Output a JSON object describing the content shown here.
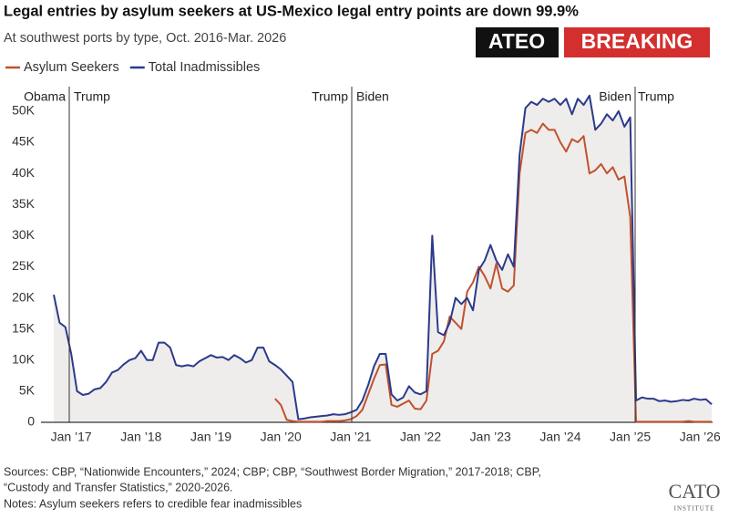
{
  "chart_data": {
    "type": "line",
    "title": "Legal entries by asylum seekers at US-Mexico legal entry points are down 99.9%",
    "subtitle": "At southwest ports by type, Oct. 2016-Mar. 2026",
    "badges": [
      "ATEO",
      "BREAKING"
    ],
    "annotations": [
      "Obama",
      "Trump",
      "Trump",
      "Biden",
      "Biden",
      "Trump"
    ],
    "sources": [
      "Sources: CBP, “Nationwide Encounters,” 2024; CBP; CBP, “Southwest Border Migration,” 2017-2018; CBP,",
      "“Custody and Transfer Statistics,” 2020-2026."
    ],
    "notes": "Notes: Asylum seekers refers to credible fear inadmissibles",
    "logo": [
      "CATO",
      "INSTITUTE"
    ],
    "categories": [
      null,
      null,
      null,
      "Jan ’17",
      null,
      null,
      null,
      null,
      null,
      null,
      null,
      null,
      null,
      null,
      null,
      "Jan ’18",
      null,
      null,
      null,
      null,
      null,
      null,
      null,
      null,
      null,
      null,
      null,
      "Jan ’19",
      null,
      null,
      null,
      null,
      null,
      null,
      null,
      null,
      null,
      null,
      null,
      "Jan ’20",
      null,
      null,
      null,
      null,
      null,
      null,
      null,
      null,
      null,
      null,
      null,
      "Jan ’21",
      null,
      null,
      null,
      null,
      null,
      null,
      null,
      null,
      null,
      null,
      null,
      "Jan ’22",
      null,
      null,
      null,
      null,
      null,
      null,
      null,
      null,
      null,
      null,
      null,
      "Jan ’23",
      null,
      null,
      null,
      null,
      null,
      null,
      null,
      null,
      null,
      null,
      null,
      "Jan ’24",
      null,
      null,
      null,
      null,
      null,
      null,
      null,
      null,
      null,
      null,
      null,
      "Jan ’25",
      null,
      null,
      null,
      null,
      null,
      null,
      null,
      null,
      null,
      null,
      null,
      "Jan ’26",
      null,
      null
    ],
    "series": [
      {
        "name": "Asylum Seekers",
        "color": "#c0522d",
        "values": [
          null,
          null,
          null,
          null,
          null,
          null,
          null,
          null,
          null,
          null,
          null,
          null,
          null,
          null,
          null,
          null,
          null,
          null,
          null,
          null,
          null,
          null,
          null,
          null,
          null,
          null,
          null,
          null,
          null,
          null,
          null,
          null,
          null,
          null,
          null,
          null,
          null,
          null,
          3800,
          2800,
          400,
          200,
          100,
          100,
          100,
          100,
          100,
          200,
          200,
          200,
          300,
          500,
          1000,
          2000,
          4500,
          7000,
          9200,
          9300,
          2800,
          2500,
          3000,
          3500,
          2200,
          2100,
          3500,
          11000,
          11500,
          13000,
          17000,
          16000,
          15000,
          21000,
          22500,
          25000,
          23500,
          21500,
          25500,
          21500,
          21000,
          22000,
          40000,
          46500,
          47000,
          46500,
          48000,
          47000,
          47000,
          45000,
          43500,
          45500,
          45000,
          46000,
          40000,
          40500,
          41500,
          40000,
          41000,
          39000,
          39500,
          33000,
          100,
          100,
          100,
          100,
          100,
          100,
          100,
          100,
          100,
          200,
          100,
          100,
          100,
          100
        ]
      },
      {
        "name": "Total Inadmissibles",
        "color": "#2b3a8c",
        "values": [
          20500,
          16000,
          15300,
          11000,
          5000,
          4400,
          4600,
          5300,
          5500,
          6500,
          8000,
          8400,
          9300,
          10000,
          10300,
          11500,
          10000,
          10000,
          12800,
          12800,
          12000,
          9200,
          9000,
          9200,
          9000,
          9800,
          10300,
          10800,
          10400,
          10500,
          10000,
          10800,
          10300,
          9600,
          10000,
          12000,
          12000,
          9800,
          9200,
          8500,
          7500,
          6500,
          500,
          600,
          800,
          900,
          1000,
          1100,
          1300,
          1200,
          1300,
          1600,
          2000,
          3500,
          6000,
          9000,
          11000,
          11000,
          4500,
          3500,
          4000,
          5800,
          4800,
          4500,
          5000,
          30000,
          14500,
          14000,
          16000,
          20000,
          19000,
          20000,
          18000,
          24500,
          26000,
          28500,
          26000,
          24500,
          27000,
          25000,
          43000,
          50500,
          51500,
          51000,
          52000,
          51500,
          52000,
          51000,
          52000,
          49500,
          52000,
          51000,
          52500,
          47000,
          48000,
          49500,
          48500,
          50000,
          47500,
          49000,
          3500,
          4000,
          3800,
          3800,
          3400,
          3500,
          3300,
          3400,
          3600,
          3500,
          3800,
          3600,
          3700,
          2900
        ]
      }
    ],
    "ylim": [
      0,
      53500
    ],
    "yticks": [
      0,
      {
        "value": 5000,
        "label": "5K"
      },
      {
        "value": 10000,
        "label": "10K"
      },
      {
        "value": 15000,
        "label": "15K"
      },
      {
        "value": 20000,
        "label": "20K"
      },
      {
        "value": 25000,
        "label": "25K"
      },
      {
        "value": 30000,
        "label": "30K"
      },
      {
        "value": 35000,
        "label": "35K"
      },
      {
        "value": 40000,
        "label": "40K"
      },
      {
        "value": 45000,
        "label": "45K"
      },
      {
        "value": 50000,
        "label": "50K"
      }
    ],
    "area_fill": "#efedec",
    "grid": false
  }
}
